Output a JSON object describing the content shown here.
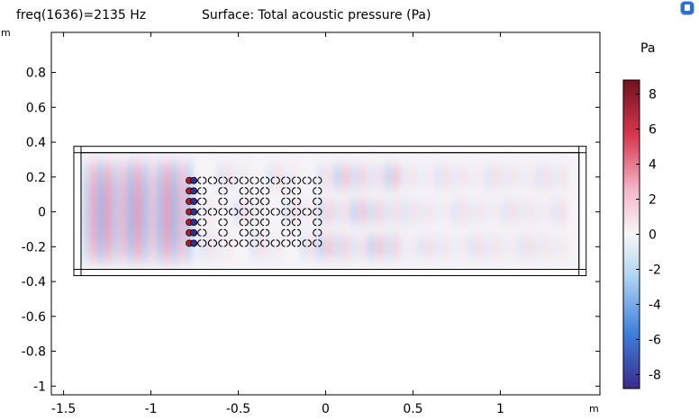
{
  "header": {
    "freq_label": "freq(1636)=2135 Hz",
    "surface_title": "Surface: Total acoustic pressure (Pa)"
  },
  "toolbar_icon": "comsol-window-icon",
  "chart_data": {
    "type": "heatmap",
    "title": "Surface: Total acoustic pressure (Pa)",
    "parameter": "freq(1636)=2135 Hz",
    "xlabel": "m",
    "ylabel": "m",
    "xlim": [
      -1.57,
      1.57
    ],
    "ylim": [
      -1.05,
      1.03
    ],
    "x_ticks": [
      "-1.5",
      "-1",
      "-0.5",
      "0",
      "0.5",
      "1"
    ],
    "x_tick_values": [
      -1.5,
      -1,
      -0.5,
      0,
      0.5,
      1
    ],
    "y_ticks": [
      "0.8",
      "0.6",
      "0.4",
      "0.2",
      "0",
      "-0.2",
      "-0.4",
      "-0.6",
      "-0.8",
      "-1"
    ],
    "y_tick_values": [
      0.8,
      0.6,
      0.4,
      0.2,
      0,
      -0.2,
      -0.4,
      -0.6,
      -0.8,
      -1
    ],
    "domain": {
      "x": [
        -1.4,
        1.45
      ],
      "y": [
        -0.33,
        0.34
      ]
    },
    "colorbar": {
      "label": "Pa",
      "range": [
        -8.8,
        8.8
      ],
      "ticks": [
        "8",
        "6",
        "4",
        "2",
        "0",
        "-2",
        "-4",
        "-6",
        "-8"
      ],
      "tick_values": [
        8,
        6,
        4,
        2,
        0,
        -2,
        -4,
        -6,
        -8
      ],
      "colors": [
        "#3a2a8a",
        "#3f7fdc",
        "#aed3f2",
        "#f7f7f7",
        "#f5b8cc",
        "#d8384d",
        "#6e1220"
      ]
    },
    "scatterer_array": {
      "rows_y": [
        0.18,
        0.12,
        0.06,
        0,
        -0.06,
        -0.12,
        -0.18
      ],
      "x_start": -0.77,
      "x_step": 0.06,
      "columns": 13,
      "empty": [
        [
          2,
          1
        ],
        [
          2,
          2
        ],
        [
          2,
          4
        ],
        [
          2,
          5
        ],
        [
          4,
          1
        ],
        [
          4,
          2
        ],
        [
          4,
          4
        ],
        [
          4,
          5
        ],
        [
          8,
          1
        ],
        [
          8,
          2
        ],
        [
          8,
          4
        ],
        [
          8,
          5
        ],
        [
          11,
          1
        ],
        [
          11,
          2
        ],
        [
          11,
          4
        ],
        [
          11,
          5
        ]
      ],
      "filled_columns": 1,
      "filled_colors": [
        "#b01c34",
        "#3a2a8a"
      ]
    }
  }
}
